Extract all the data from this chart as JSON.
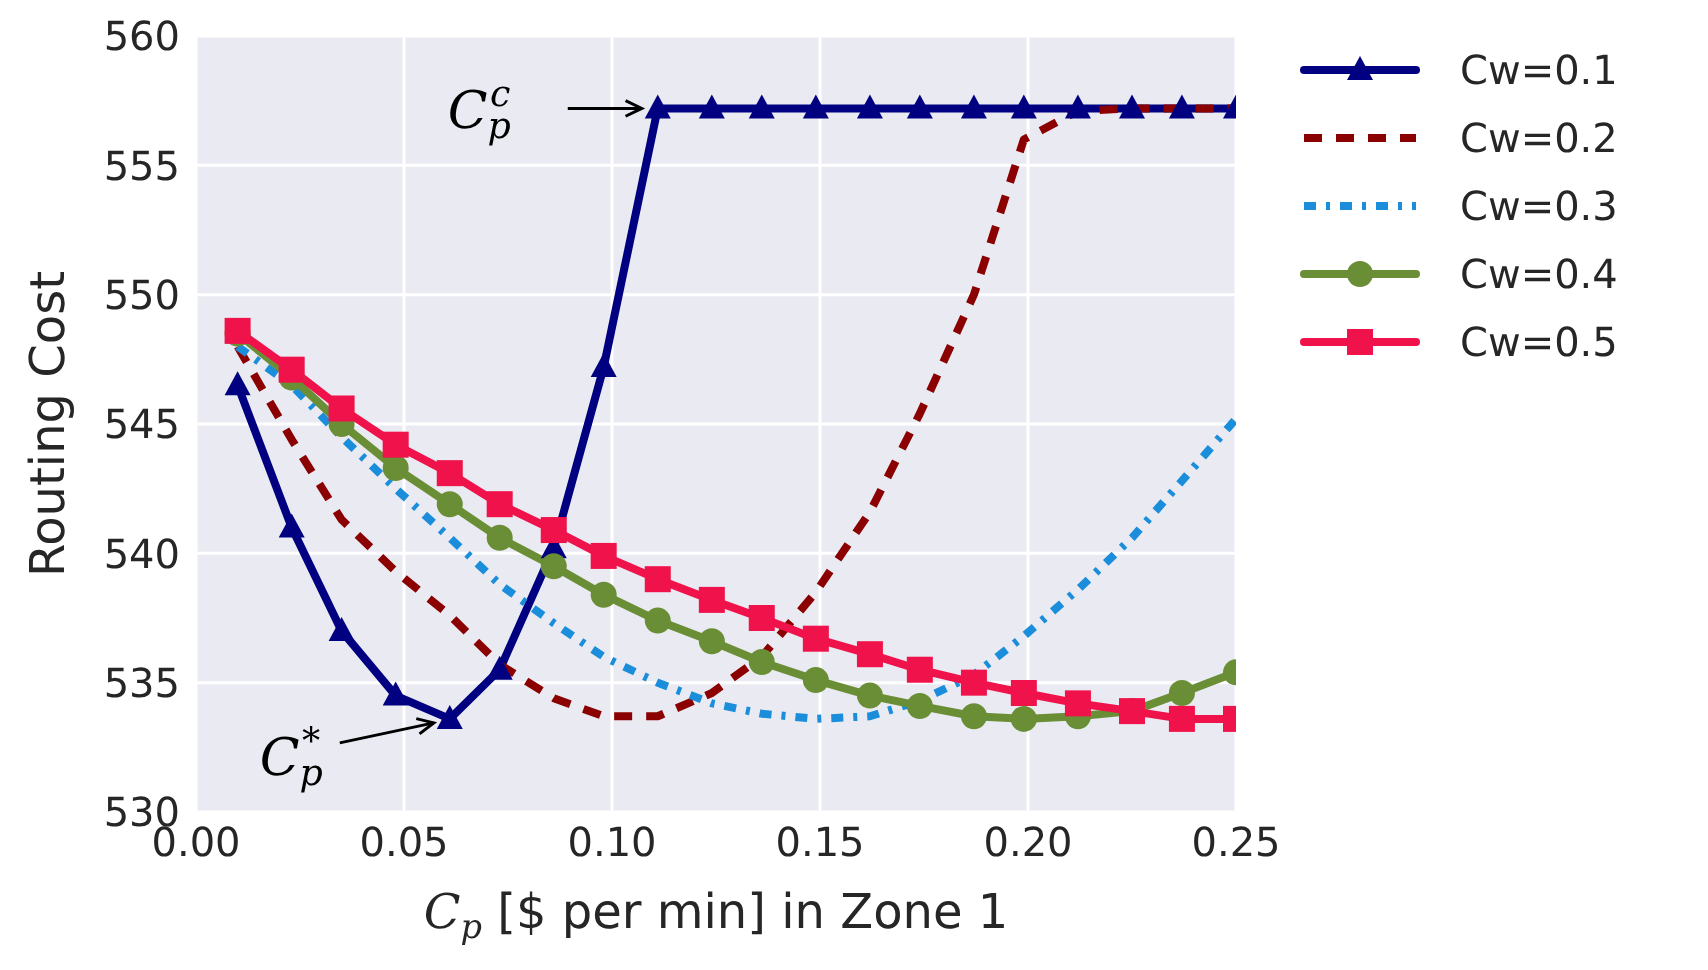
{
  "chart_data": {
    "type": "line",
    "xlabel": "C$_{p}$ [$ per min] in Zone 1",
    "ylabel": "Routing Cost",
    "x": [
      0.01,
      0.023,
      0.035,
      0.048,
      0.061,
      0.073,
      0.086,
      0.098,
      0.111,
      0.124,
      0.136,
      0.149,
      0.162,
      0.174,
      0.187,
      0.199,
      0.212,
      0.225,
      0.237,
      0.25
    ],
    "series": [
      {
        "name": "Cw=0.1",
        "color": "#000080",
        "marker": "triangle",
        "line_style": "solid",
        "values": [
          546.5,
          541,
          537,
          534.5,
          533.6,
          535.5,
          540.2,
          547.2,
          557.2,
          557.2,
          557.2,
          557.2,
          557.2,
          557.2,
          557.2,
          557.2,
          557.2,
          557.2,
          557.2,
          557.2
        ]
      },
      {
        "name": "Cw=0.2",
        "color": "#8b0000",
        "marker": "none",
        "line_style": "dashed",
        "values": [
          548,
          544.4,
          541.3,
          539.3,
          537.6,
          535.7,
          534.4,
          533.7,
          533.7,
          534.6,
          536,
          538.5,
          541.6,
          545.4,
          550,
          556,
          557.1,
          557.2,
          557.2,
          557.2
        ]
      },
      {
        "name": "Cw=0.3",
        "color": "#1a8edb",
        "marker": "none",
        "line_style": "dotted",
        "values": [
          548,
          546.5,
          544.5,
          542.5,
          540.6,
          538.8,
          537.3,
          536,
          535,
          534.2,
          533.8,
          533.6,
          533.7,
          534.3,
          535.3,
          536.8,
          538.6,
          540.6,
          542.8,
          545.2
        ]
      },
      {
        "name": "Cw=0.4",
        "color": "#6a8e35",
        "marker": "circle",
        "line_style": "solid",
        "values": [
          548.5,
          546.8,
          545,
          543.3,
          541.9,
          540.6,
          539.5,
          538.4,
          537.4,
          536.6,
          535.8,
          535.1,
          534.5,
          534.1,
          533.7,
          533.6,
          533.7,
          533.9,
          534.6,
          535.4
        ]
      },
      {
        "name": "Cw=0.5",
        "color": "#f0124a",
        "marker": "square",
        "line_style": "solid",
        "values": [
          548.6,
          547.1,
          545.6,
          544.2,
          543.1,
          541.9,
          540.9,
          539.9,
          539,
          538.2,
          537.5,
          536.7,
          536.1,
          535.5,
          535,
          534.6,
          534.2,
          533.9,
          533.6,
          533.6
        ]
      }
    ],
    "xlim": [
      0,
      0.25
    ],
    "xticks": [
      {
        "value": 0,
        "label": "0.00"
      },
      {
        "value": 0.05,
        "label": "0.05"
      },
      {
        "value": 0.1,
        "label": "0.10"
      },
      {
        "value": 0.15,
        "label": "0.15"
      },
      {
        "value": 0.2,
        "label": "0.20"
      },
      {
        "value": 0.25,
        "label": "0.25"
      }
    ],
    "ylim": [
      530,
      560
    ],
    "yticks": [
      530,
      535,
      540,
      545,
      550,
      555,
      560
    ],
    "grid": true,
    "legend": "right",
    "annotations": [
      {
        "text": "C$_{p}$$^{c}$",
        "x": 0.111,
        "y": 557.2
      },
      {
        "text": "C$_{p}$$^{*}$",
        "x": 0.061,
        "y": 533.6
      }
    ]
  }
}
